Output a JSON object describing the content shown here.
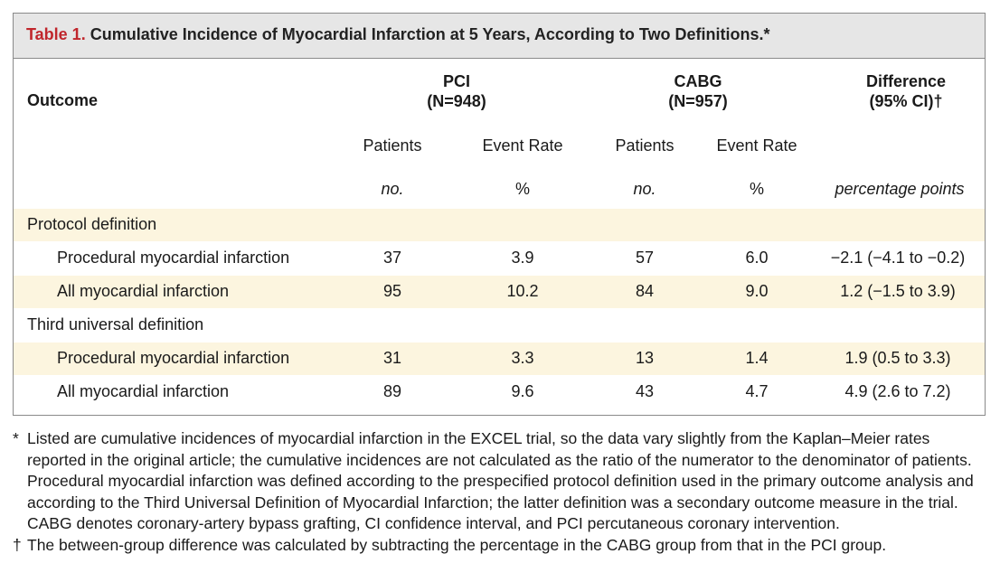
{
  "table": {
    "caption_label": "Table 1.",
    "caption_text": "Cumulative Incidence of Myocardial Infarction at 5 Years, According to Two Definitions.*",
    "header": {
      "outcome": "Outcome",
      "pci": "PCI",
      "pci_n": "(N=948)",
      "cabg": "CABG",
      "cabg_n": "(N=957)",
      "difference": "Difference",
      "difference_ci": "(95% CI)†",
      "patients": "Patients",
      "event_rate": "Event Rate",
      "unit_no": "no.",
      "unit_pct": "%",
      "unit_pp": "percentage points"
    },
    "sections": [
      {
        "title": "Protocol definition",
        "rows": [
          {
            "label": "Procedural myocardial infarction",
            "pci_patients": "37",
            "pci_rate": "3.9",
            "cabg_patients": "57",
            "cabg_rate": "6.0",
            "difference": "−2.1 (−4.1 to −0.2)"
          },
          {
            "label": "All myocardial infarction",
            "pci_patients": "95",
            "pci_rate": "10.2",
            "cabg_patients": "84",
            "cabg_rate": "9.0",
            "difference": "1.2 (−1.5 to 3.9)"
          }
        ]
      },
      {
        "title": "Third universal definition",
        "rows": [
          {
            "label": "Procedural myocardial infarction",
            "pci_patients": "31",
            "pci_rate": "3.3",
            "cabg_patients": "13",
            "cabg_rate": "1.4",
            "difference": "1.9 (0.5 to 3.3)"
          },
          {
            "label": "All myocardial infarction",
            "pci_patients": "89",
            "pci_rate": "9.6",
            "cabg_patients": "43",
            "cabg_rate": "4.7",
            "difference": "4.9 (2.6 to 7.2)"
          }
        ]
      }
    ]
  },
  "footnotes": {
    "star_mark": "*",
    "star_text": "Listed are cumulative incidences of myocardial infarction in the EXCEL trial, so the data vary slightly from the Kaplan–Meier rates reported in the original article; the cumulative incidences are not calculated as the ratio of the numerator to the denominator of patients. Procedural myocardial infarction was defined according to the prespecified protocol definition used in the primary outcome analysis and according to the Third Universal Definition of Myocardial Infarction; the latter definition was a secondary outcome measure in the trial. CABG denotes coronary-artery bypass grafting, CI confidence interval, and PCI percutaneous coronary intervention.",
    "dagger_mark": "†",
    "dagger_text": "The between-group difference was calculated by subtracting the percentage in the CABG group from that in the PCI group."
  }
}
